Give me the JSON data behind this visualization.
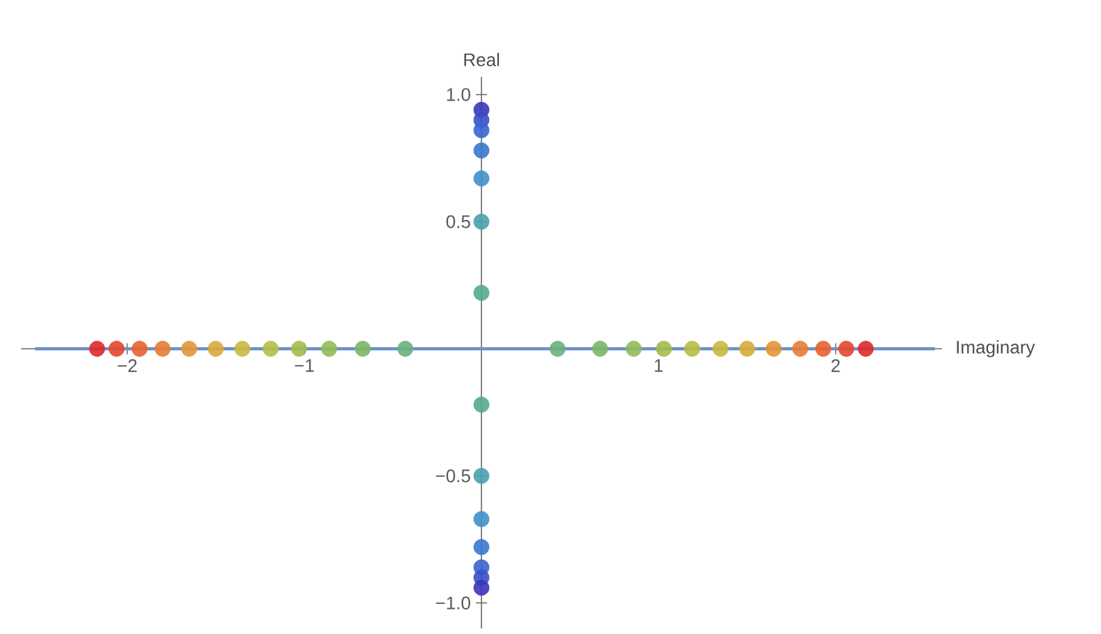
{
  "chart_data": {
    "type": "scatter",
    "xlabel": "Imaginary",
    "ylabel": "Real",
    "xlim": [
      -2.6,
      2.6
    ],
    "ylim": [
      -1.1,
      1.07
    ],
    "xticks": [
      {
        "value": -2,
        "label": "−2"
      },
      {
        "value": -1,
        "label": "−1"
      },
      1,
      2
    ],
    "yticks": [
      {
        "value": -1,
        "label": "−1.0"
      },
      {
        "value": -0.5,
        "label": "−0.5"
      },
      0.5,
      {
        "value": 1,
        "label": "1.0"
      }
    ],
    "marker": "circle",
    "grid": false,
    "series": [
      {
        "type": "line",
        "marker": "none",
        "color": "#6a8fc8",
        "x": [
          -2.52,
          2.56
        ],
        "values": [
          0,
          0
        ]
      },
      {
        "x": [
          -2.17,
          -2.06,
          -1.93,
          -1.8,
          -1.65,
          -1.5,
          -1.35,
          -1.19,
          -1.03,
          -0.86,
          -0.67,
          -0.43,
          0.43,
          0.67,
          0.86,
          1.03,
          1.19,
          1.35,
          1.5,
          1.65,
          1.8,
          1.93,
          2.06,
          2.17,
          0,
          0,
          0,
          0,
          0,
          0,
          0,
          0,
          0,
          0,
          0,
          0,
          0,
          0
        ],
        "values": [
          0,
          0,
          0,
          0,
          0,
          0,
          0,
          0,
          0,
          0,
          0,
          0,
          0,
          0,
          0,
          0,
          0,
          0,
          0,
          0,
          0,
          0,
          0,
          0,
          0.94,
          0.9,
          0.86,
          0.78,
          0.67,
          0.5,
          0.22,
          -0.22,
          -0.5,
          -0.67,
          -0.78,
          -0.86,
          -0.9,
          -0.94
        ],
        "colors": [
          "#dd2a28",
          "#e4472c",
          "#e8622f",
          "#e87c33",
          "#e39637",
          "#d9ab3b",
          "#c9b93f",
          "#b7be45",
          "#a3bd4c",
          "#8fbb55",
          "#7cb666",
          "#6cb07c",
          "#6cb07c",
          "#7cb666",
          "#8fbb55",
          "#a3bd4c",
          "#b7be45",
          "#c9b93f",
          "#d9ab3b",
          "#e39637",
          "#e87c33",
          "#e8622f",
          "#e4472c",
          "#dd2a28",
          "#3a36b8",
          "#3850c8",
          "#3864d0",
          "#3a78d0",
          "#4090c8",
          "#4aa0b0",
          "#54a890",
          "#54a890",
          "#4aa0b0",
          "#4090c8",
          "#3a78d0",
          "#3864d0",
          "#3850c8",
          "#3a36b8"
        ]
      }
    ]
  }
}
